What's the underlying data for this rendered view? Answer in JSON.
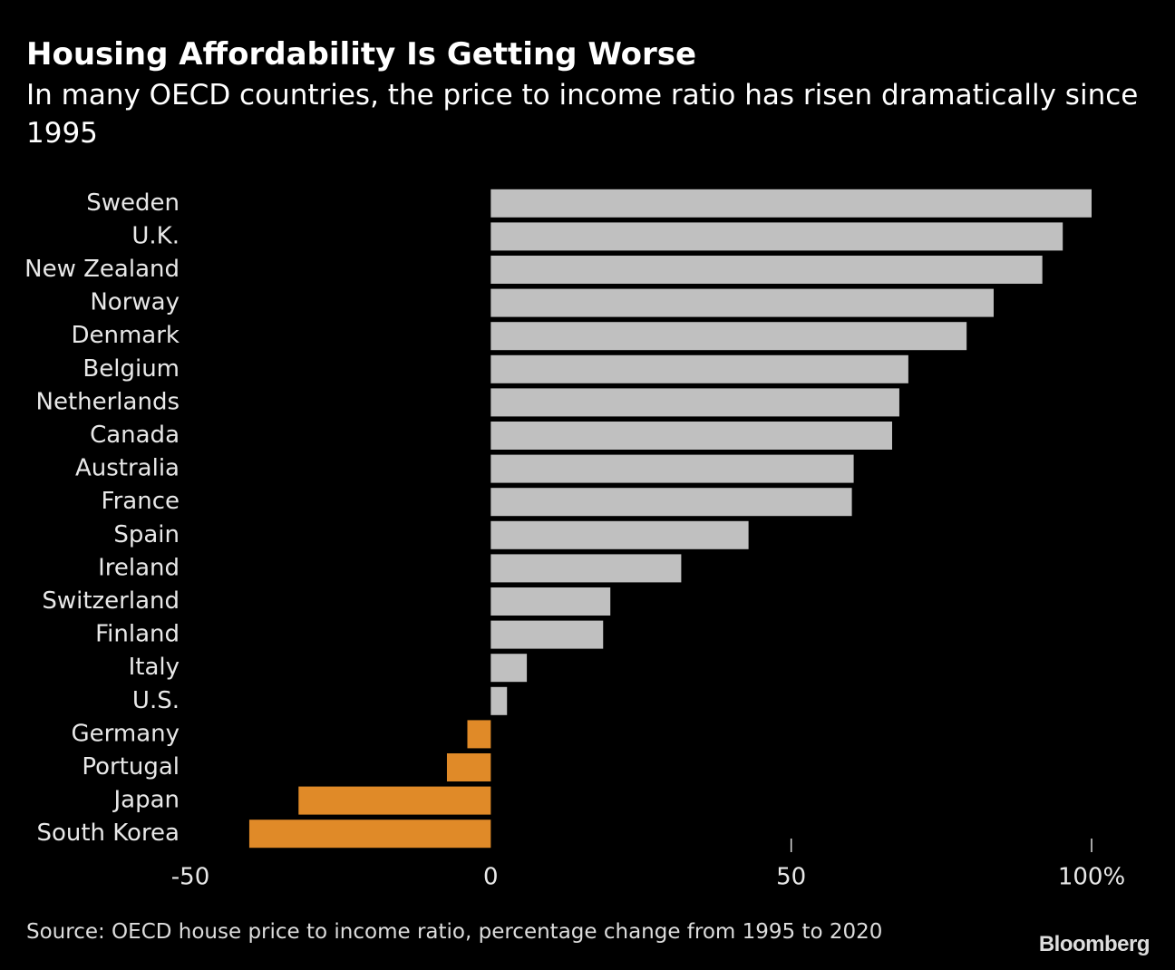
{
  "chart_data": {
    "type": "hbar",
    "title": "Housing Affordability Is Getting Worse",
    "subtitle": "In many OECD countries, the price to income ratio has risen dramatically since 1995",
    "categories": [
      "Sweden",
      "U.K.",
      "New Zealand",
      "Norway",
      "Denmark",
      "Belgium",
      "Netherlands",
      "Canada",
      "Australia",
      "France",
      "Spain",
      "Ireland",
      "Switzerland",
      "Finland",
      "Italy",
      "U.S.",
      "Germany",
      "Portugal",
      "Japan",
      "South Korea"
    ],
    "values": [
      100,
      95.2,
      91.8,
      83.7,
      79.2,
      69.5,
      68,
      66.8,
      60.4,
      60.1,
      42.9,
      31.7,
      19.9,
      18.7,
      6,
      2.7,
      -3.9,
      -7.3,
      -32,
      -40.2
    ],
    "colors": {
      "positive": "#c0c0c0",
      "negative": "#e08a28"
    },
    "xlim": [
      -50,
      100
    ],
    "xticks": [
      -50,
      0,
      50,
      {
        "value": 100,
        "label": "100%"
      }
    ],
    "source": "Source: OECD house price to income ratio, percentage change from 1995 to 2020",
    "logo": "Bloomberg"
  }
}
